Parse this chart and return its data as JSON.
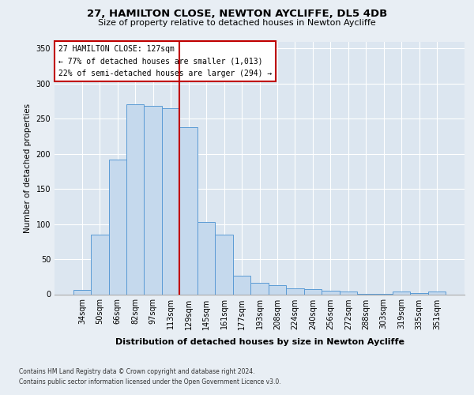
{
  "title1": "27, HAMILTON CLOSE, NEWTON AYCLIFFE, DL5 4DB",
  "title2": "Size of property relative to detached houses in Newton Aycliffe",
  "xlabel": "Distribution of detached houses by size in Newton Aycliffe",
  "ylabel": "Number of detached properties",
  "footer1": "Contains HM Land Registry data © Crown copyright and database right 2024.",
  "footer2": "Contains public sector information licensed under the Open Government Licence v3.0.",
  "annotation_title": "27 HAMILTON CLOSE: 127sqm",
  "annotation_line1": "← 77% of detached houses are smaller (1,013)",
  "annotation_line2": "22% of semi-detached houses are larger (294) →",
  "categories": [
    "34sqm",
    "50sqm",
    "66sqm",
    "82sqm",
    "97sqm",
    "113sqm",
    "129sqm",
    "145sqm",
    "161sqm",
    "177sqm",
    "193sqm",
    "208sqm",
    "224sqm",
    "240sqm",
    "256sqm",
    "272sqm",
    "288sqm",
    "303sqm",
    "319sqm",
    "335sqm",
    "351sqm"
  ],
  "values": [
    6,
    85,
    192,
    270,
    268,
    265,
    238,
    103,
    85,
    26,
    16,
    13,
    9,
    7,
    5,
    4,
    1,
    1,
    4,
    2,
    4
  ],
  "bar_color": "#c5d9ed",
  "bar_edge_color": "#5b9bd5",
  "marker_color": "#c00000",
  "bg_color": "#e8eef4",
  "plot_bg_color": "#dce6f0",
  "grid_color": "#ffffff",
  "ylim": [
    0,
    360
  ],
  "yticks": [
    0,
    50,
    100,
    150,
    200,
    250,
    300,
    350
  ],
  "red_line_x": 5.5,
  "title1_fontsize": 9.5,
  "title2_fontsize": 8,
  "ylabel_fontsize": 7.5,
  "xlabel_fontsize": 8,
  "tick_fontsize": 7,
  "annotation_fontsize": 7,
  "footer_fontsize": 5.5
}
